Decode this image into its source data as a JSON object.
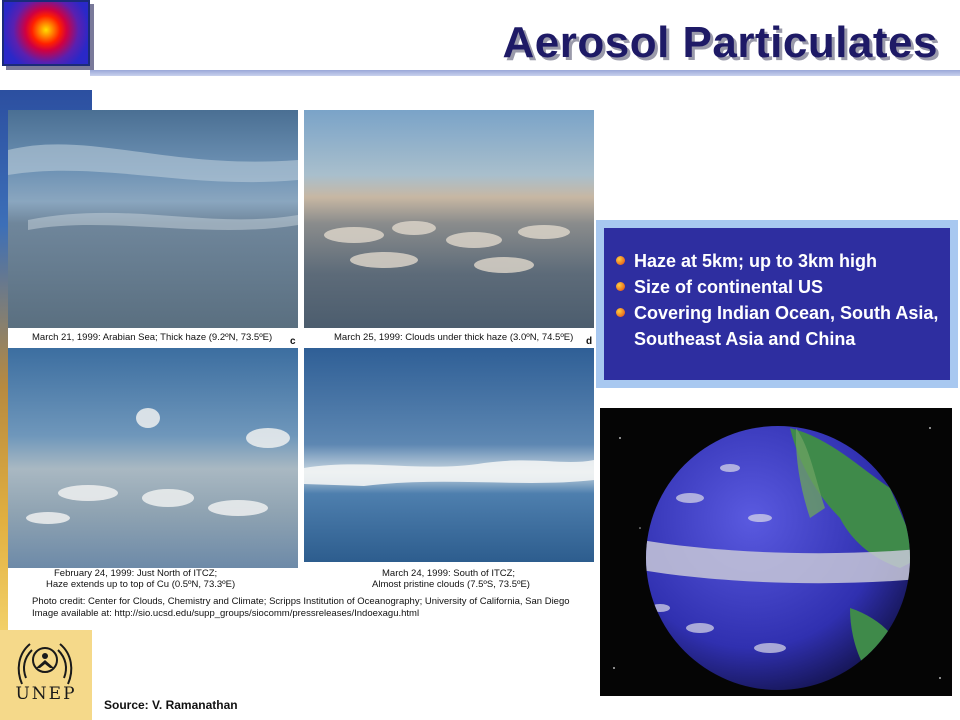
{
  "slide": {
    "title": "Aerosol Particulates",
    "source": "Source: V. Ramanathan"
  },
  "logo": {
    "org": "UNEP"
  },
  "photos": [
    {
      "caption": "March 21, 1999: Arabian Sea; Thick haze (9.2ºN, 73.5ºE)",
      "letter": "c"
    },
    {
      "caption": "March 25, 1999: Clouds under thick haze (3.0ºN, 74.5ºE)",
      "letter": "d"
    },
    {
      "caption_line1": "February 24, 1999: Just North of ITCZ;",
      "caption_line2": "Haze extends up to top of Cu (0.5ºN, 73.3ºE)"
    },
    {
      "caption_line1": "March 24, 1999: South of ITCZ;",
      "caption_line2": "Almost pristine clouds (7.5ºS, 73.5ºE)"
    }
  ],
  "credit": {
    "line1": "Photo credit:  Center for Clouds, Chemistry and Climate; Scripps Institution of Oceanography; University of California, San Diego",
    "line2": "Image available at:  http://sio.ucsd.edu/supp_groups/siocomm/pressreleases/Indoexagu.html"
  },
  "bullets": [
    "Haze at 5km; up to 3km high",
    "Size of continental US",
    "Covering Indian Ocean, South Asia, Southeast Asia and China"
  ],
  "colors": {
    "title": "#1e1a66",
    "bullet_box": "#2e2ea0",
    "bullet_border": "#a8c8f0"
  }
}
